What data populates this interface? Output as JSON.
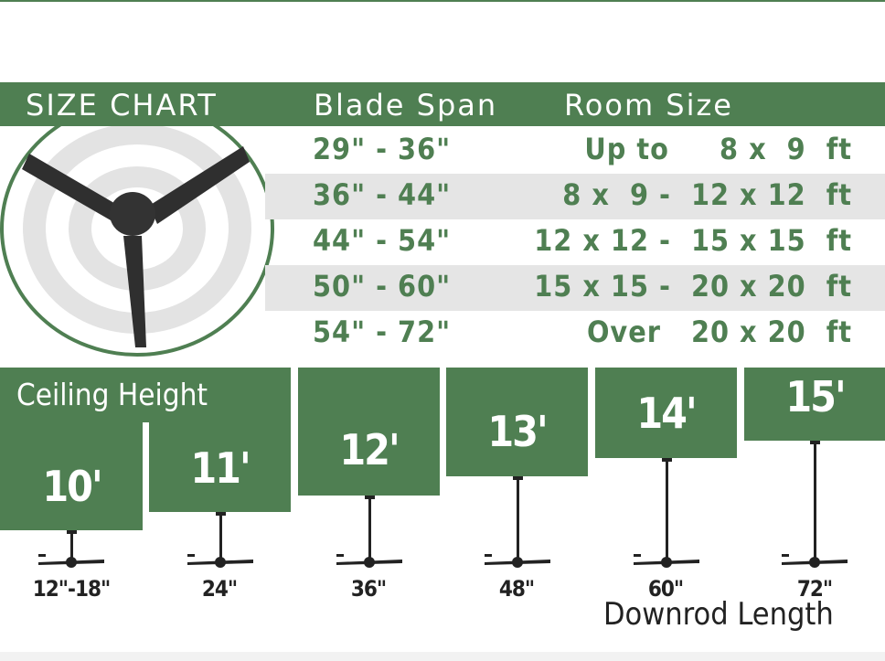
{
  "title": "SIZE CHART",
  "headers": {
    "blade_span": "Blade Span",
    "room_size": "Room Size"
  },
  "rows": [
    {
      "span": "29\" - 36\"",
      "room": "Up to     8 x  9  ft"
    },
    {
      "span": "36\" - 44\"",
      "room": "8 x  9 -  12 x 12  ft"
    },
    {
      "span": "44\" - 54\"",
      "room": "12 x 12 -  15 x 15  ft"
    },
    {
      "span": "50\" - 60\"",
      "room": "15 x 15 -  20 x 20  ft"
    },
    {
      "span": "54\" - 72\"",
      "room": "Over   20 x 20  ft"
    }
  ],
  "ceiling_label": "Ceiling Height",
  "heights": [
    {
      "height": "10'",
      "downrod": "12\"-18\""
    },
    {
      "height": "11'",
      "downrod": "24\""
    },
    {
      "height": "12'",
      "downrod": "36\""
    },
    {
      "height": "13'",
      "downrod": "48\""
    },
    {
      "height": "14'",
      "downrod": "60\""
    },
    {
      "height": "15'",
      "downrod": "72\""
    }
  ],
  "downrod_label": "Downrod Length",
  "colors": {
    "brand_green": "#4f7f52",
    "row_gray": "#e5e5e5",
    "fan": "#2a2a2a"
  },
  "icons": [
    "ceiling-fan-icon"
  ]
}
